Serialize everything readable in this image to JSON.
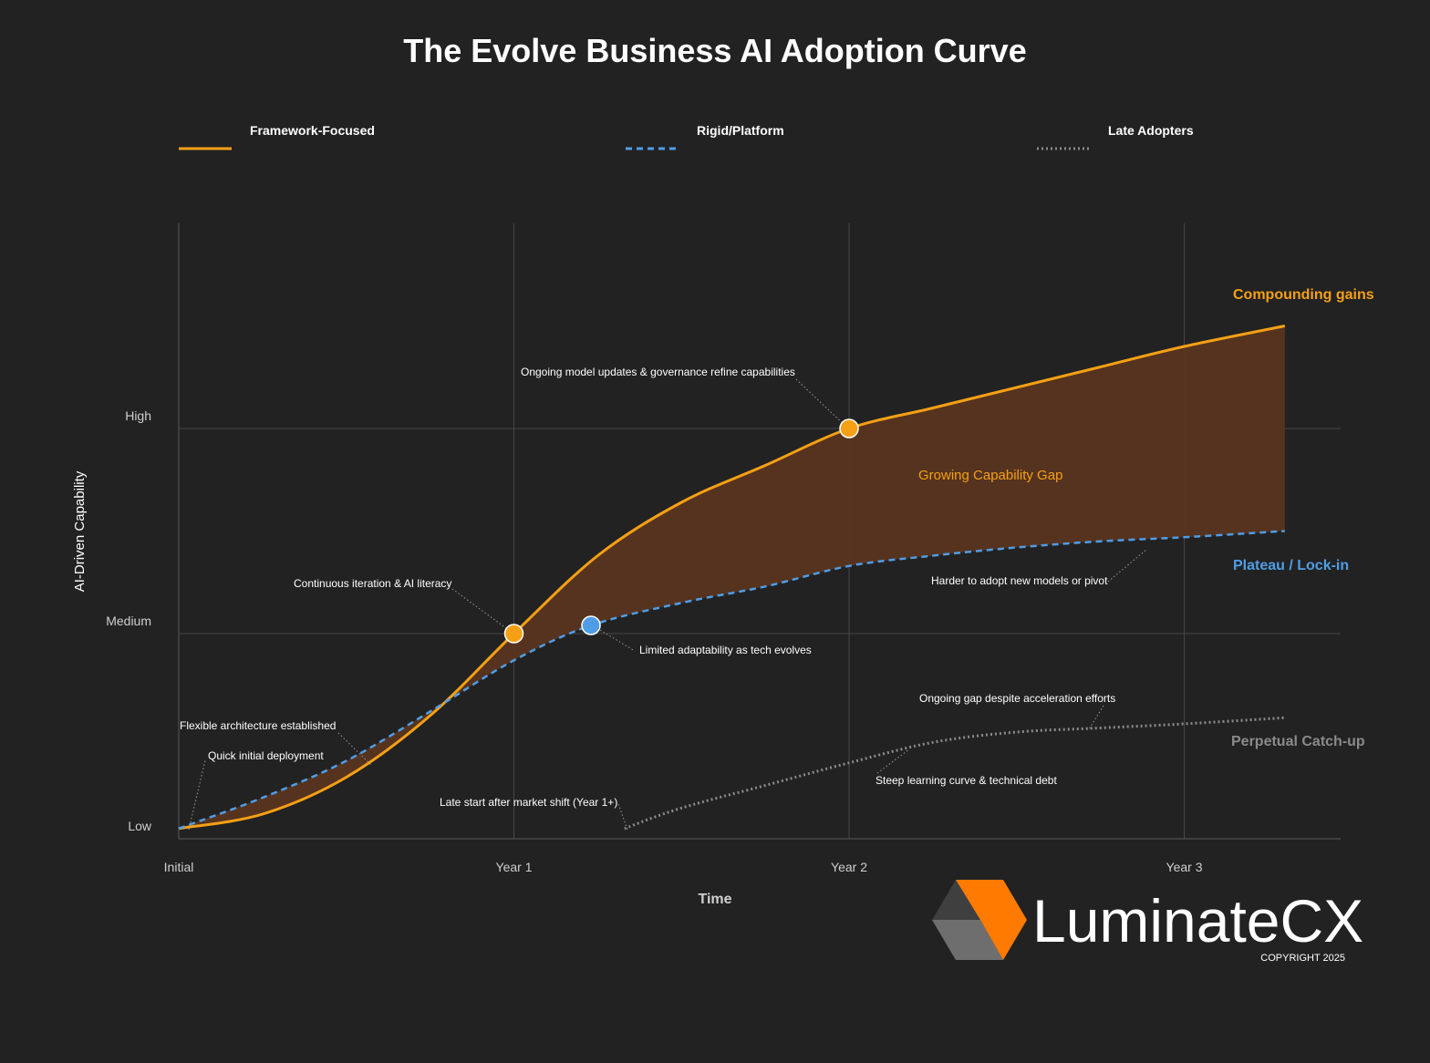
{
  "chart_data": {
    "type": "line",
    "title": "The Evolve Business AI Adoption Curve",
    "xlabel": "Time",
    "ylabel": "AI-Driven Capability",
    "categories": [
      "Initial",
      "Year 1",
      "Year 2",
      "Year 3"
    ],
    "y_levels": [
      "Low",
      "Medium",
      "High"
    ],
    "xlim": [
      0,
      3.3
    ],
    "ylim": [
      0,
      3
    ],
    "grid": true,
    "legend_position": "top",
    "series": [
      {
        "name": "Framework-Focused",
        "style": "solid",
        "color": "#f5a015",
        "x": [
          0,
          0.25,
          0.5,
          0.75,
          1.0,
          1.25,
          1.5,
          1.75,
          2.0,
          2.25,
          2.5,
          2.75,
          3.0,
          3.3
        ],
        "y": [
          0.05,
          0.12,
          0.3,
          0.6,
          1.0,
          1.38,
          1.64,
          1.82,
          2.0,
          2.1,
          2.2,
          2.3,
          2.4,
          2.5
        ]
      },
      {
        "name": "Rigid/Platform",
        "style": "dashed",
        "color": "#4f9de6",
        "x": [
          0,
          0.25,
          0.5,
          0.75,
          1.0,
          1.23,
          1.5,
          1.75,
          2.0,
          2.25,
          2.5,
          2.75,
          3.0,
          3.3
        ],
        "y": [
          0.05,
          0.2,
          0.38,
          0.62,
          0.87,
          1.04,
          1.15,
          1.23,
          1.33,
          1.38,
          1.42,
          1.45,
          1.47,
          1.5
        ]
      },
      {
        "name": "Late Adopters",
        "style": "dotted",
        "color": "#8a8a8a",
        "x": [
          1.33,
          1.5,
          1.75,
          2.0,
          2.25,
          2.5,
          2.75,
          3.0,
          3.3
        ],
        "y": [
          0.05,
          0.15,
          0.26,
          0.37,
          0.47,
          0.52,
          0.54,
          0.56,
          0.59
        ]
      }
    ],
    "milestones": [
      {
        "series": "Framework-Focused",
        "x": 1.0,
        "y": 1.0,
        "color": "#f5a015"
      },
      {
        "series": "Framework-Focused",
        "x": 2.0,
        "y": 2.0,
        "color": "#f5a015"
      },
      {
        "series": "Rigid/Platform",
        "x": 1.23,
        "y": 1.04,
        "color": "#4f9de6"
      }
    ],
    "annotations": [
      {
        "text": "Quick initial deployment",
        "x": 0.0,
        "y": 0.05
      },
      {
        "text": "Flexible architecture established",
        "x": 0.57,
        "y": 0.37
      },
      {
        "text": "Continuous iteration & AI literacy",
        "x": 1.0,
        "y": 1.0
      },
      {
        "text": "Limited adaptability as tech evolves",
        "x": 1.23,
        "y": 1.04
      },
      {
        "text": "Ongoing model updates & governance refine capabilities",
        "x": 2.0,
        "y": 2.0
      },
      {
        "text": "Harder to adopt new models or pivot",
        "x": 2.88,
        "y": 1.46
      },
      {
        "text": "Late start after market shift (Year 1+)",
        "x": 1.33,
        "y": 0.05
      },
      {
        "text": "Steep learning curve & technical debt",
        "x": 2.2,
        "y": 0.45
      },
      {
        "text": "Ongoing gap despite acceleration efforts",
        "x": 2.72,
        "y": 0.54
      }
    ],
    "shaded_region": {
      "label": "Growing Capability Gap",
      "between": [
        "Framework-Focused",
        "Rigid/Platform"
      ],
      "color": "#5a3520"
    },
    "side_labels": [
      {
        "text": "Compounding gains",
        "series": "Framework-Focused",
        "color": "#f5a015"
      },
      {
        "text": "Plateau / Lock-in",
        "series": "Rigid/Platform",
        "color": "#4f9de6"
      },
      {
        "text": "Perpetual Catch-up",
        "series": "Late Adopters",
        "color": "#8a8a8a"
      }
    ]
  },
  "branding": {
    "name": "LuminateCX",
    "copyright": "COPYRIGHT 2025",
    "colors": {
      "orange": "#ff7a00",
      "gray_dark": "#3f3f3f",
      "gray_light": "#6e6e6e"
    }
  },
  "colors": {
    "background": "#222222",
    "grid": "#464646",
    "axis": "#5a5a5a"
  }
}
